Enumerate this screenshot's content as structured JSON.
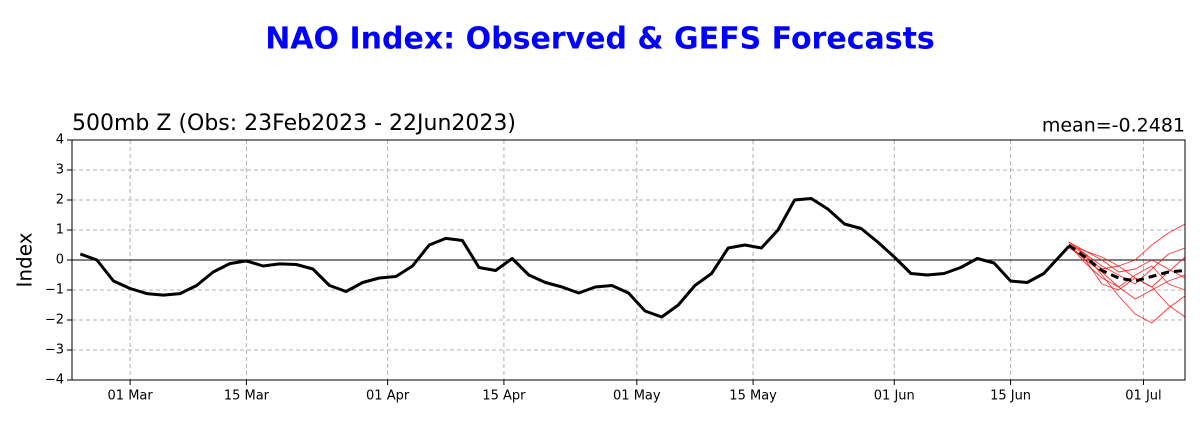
{
  "chart_data": {
    "type": "line",
    "title": "NAO Index: Observed & GEFS Forecasts",
    "subtitle": "500mb Z (Obs: 23Feb2023 - 22Jun2023)",
    "annotation": "mean=-0.2481",
    "y_label": "Index",
    "xlim": [
      "02-22",
      "07-06"
    ],
    "xticks": [
      {
        "value": "03-01",
        "label": "01 Mar"
      },
      {
        "value": "03-15",
        "label": "15 Mar"
      },
      {
        "value": "04-01",
        "label": "01 Apr"
      },
      {
        "value": "04-15",
        "label": "15 Apr"
      },
      {
        "value": "05-01",
        "label": "01 May"
      },
      {
        "value": "05-15",
        "label": "15 May"
      },
      {
        "value": "06-01",
        "label": "01 Jun"
      },
      {
        "value": "06-15",
        "label": "15 Jun"
      },
      {
        "value": "07-01",
        "label": "01 Jul"
      }
    ],
    "ylim": [
      -4,
      4
    ],
    "yticks": [
      {
        "value": -4,
        "label": "−4"
      },
      {
        "value": -3,
        "label": "−3"
      },
      {
        "value": -2,
        "label": "−2"
      },
      {
        "value": -1,
        "label": "−1"
      },
      0,
      1,
      2,
      3,
      4
    ],
    "grid": true,
    "zero_line": true,
    "series": [
      {
        "color": "#ff0000",
        "x": [
          "06-22",
          "06-24",
          "06-26",
          "06-28",
          "06-30",
          "07-02",
          "07-04",
          "07-06"
        ],
        "values": [
          0.5,
          0.2,
          -0.5,
          -1.2,
          -1.8,
          -2.1,
          -1.6,
          -1.2
        ]
      },
      {
        "color": "#ff0000",
        "x": [
          "06-22",
          "06-24",
          "06-26",
          "06-28",
          "06-30",
          "07-02",
          "07-04",
          "07-06"
        ],
        "values": [
          0.5,
          0.3,
          0.1,
          -0.2,
          0.0,
          0.5,
          0.9,
          1.2
        ]
      },
      {
        "color": "#ff0000",
        "x": [
          "06-22",
          "06-24",
          "06-26",
          "06-28",
          "06-30",
          "07-02",
          "07-04",
          "07-06"
        ],
        "values": [
          0.5,
          0.0,
          -0.8,
          -1.0,
          -0.6,
          -0.9,
          -1.5,
          -1.9
        ]
      },
      {
        "color": "#ff0000",
        "x": [
          "06-22",
          "06-24",
          "06-26",
          "06-28",
          "06-30",
          "07-02",
          "07-04",
          "07-06"
        ],
        "values": [
          0.6,
          0.2,
          -0.2,
          -0.5,
          -0.8,
          -0.3,
          0.2,
          0.4
        ]
      },
      {
        "color": "#ff0000",
        "x": [
          "06-22",
          "06-24",
          "06-26",
          "06-28",
          "06-30",
          "07-02",
          "07-04",
          "07-06"
        ],
        "values": [
          0.5,
          -0.1,
          -0.6,
          -0.9,
          -1.3,
          -1.0,
          -0.7,
          -0.5
        ]
      },
      {
        "color": "#ff0000",
        "x": [
          "06-22",
          "06-24",
          "06-26",
          "06-28",
          "06-30",
          "07-02",
          "07-04",
          "07-06"
        ],
        "values": [
          0.4,
          0.1,
          -0.3,
          -0.2,
          -0.6,
          -0.9,
          -0.4,
          0.1
        ]
      },
      {
        "color": "#ff0000",
        "x": [
          "06-22",
          "06-24",
          "06-26",
          "06-28",
          "06-30",
          "07-02",
          "07-04",
          "07-06"
        ],
        "values": [
          0.5,
          0.0,
          -0.4,
          -0.9,
          -0.5,
          -0.2,
          -0.8,
          -1.0
        ]
      },
      {
        "color": "#ff0000",
        "x": [
          "06-22",
          "06-24",
          "06-26",
          "06-28",
          "06-30",
          "07-02",
          "07-04",
          "07-06"
        ],
        "values": [
          0.6,
          0.3,
          0.0,
          -0.4,
          -0.3,
          0.0,
          -0.3,
          -0.6
        ]
      },
      {
        "color": "#000000",
        "linestyle": "dashed",
        "x": [
          "06-22",
          "06-24",
          "06-26",
          "06-28",
          "06-30",
          "07-02",
          "07-04",
          "07-06"
        ],
        "values": [
          0.5,
          0.1,
          -0.35,
          -0.6,
          -0.7,
          -0.55,
          -0.4,
          -0.35
        ]
      },
      {
        "color": "#000000",
        "linestyle": "solid",
        "x": [
          "02-23",
          "02-25",
          "02-27",
          "03-01",
          "03-03",
          "03-05",
          "03-07",
          "03-09",
          "03-11",
          "03-13",
          "03-15",
          "03-17",
          "03-19",
          "03-21",
          "03-23",
          "03-25",
          "03-27",
          "03-29",
          "03-31",
          "04-02",
          "04-04",
          "04-06",
          "04-08",
          "04-10",
          "04-12",
          "04-14",
          "04-16",
          "04-18",
          "04-20",
          "04-22",
          "04-24",
          "04-26",
          "04-28",
          "04-30",
          "05-02",
          "05-04",
          "05-06",
          "05-08",
          "05-10",
          "05-12",
          "05-14",
          "05-16",
          "05-18",
          "05-20",
          "05-22",
          "05-24",
          "05-26",
          "05-28",
          "05-30",
          "06-01",
          "06-03",
          "06-05",
          "06-07",
          "06-09",
          "06-11",
          "06-13",
          "06-15",
          "06-17",
          "06-19",
          "06-21",
          "06-22"
        ],
        "values": [
          0.2,
          0.0,
          -0.7,
          -0.95,
          -1.12,
          -1.17,
          -1.12,
          -0.85,
          -0.4,
          -0.12,
          -0.03,
          -0.2,
          -0.13,
          -0.15,
          -0.3,
          -0.85,
          -1.05,
          -0.75,
          -0.6,
          -0.55,
          -0.2,
          0.5,
          0.72,
          0.65,
          -0.25,
          -0.35,
          0.05,
          -0.5,
          -0.75,
          -0.9,
          -1.1,
          -0.9,
          -0.85,
          -1.1,
          -1.7,
          -1.9,
          -1.5,
          -0.85,
          -0.45,
          0.4,
          0.5,
          0.4,
          1.0,
          2.0,
          2.05,
          1.7,
          1.2,
          1.05,
          0.6,
          0.1,
          -0.45,
          -0.5,
          -0.45,
          -0.25,
          0.05,
          -0.1,
          -0.7,
          -0.75,
          -0.45,
          0.15,
          0.45
        ]
      }
    ]
  }
}
